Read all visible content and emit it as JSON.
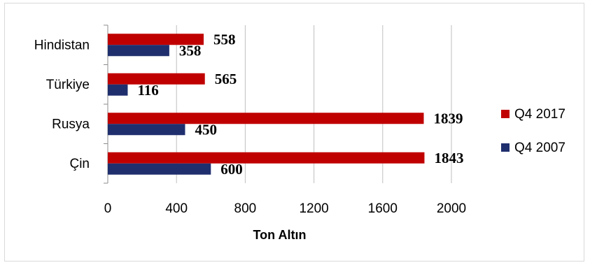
{
  "chart_data": {
    "type": "bar",
    "orientation": "horizontal",
    "categories": [
      "Hindistan",
      "Türkiye",
      "Rusya",
      "Çin"
    ],
    "series": [
      {
        "name": "Q4 2017",
        "values": [
          558,
          565,
          1839,
          1843
        ],
        "color": "#c00000"
      },
      {
        "name": "Q4 2007",
        "values": [
          358,
          116,
          450,
          600
        ],
        "color": "#1f2f6e"
      }
    ],
    "xlabel": "Ton Altın",
    "ylabel": "",
    "xlim": [
      0,
      2000
    ],
    "xticks": [
      "0",
      "400",
      "800",
      "1200",
      "1600",
      "2000"
    ],
    "grid": "vertical",
    "legend_position": "right",
    "data_labels": true
  }
}
